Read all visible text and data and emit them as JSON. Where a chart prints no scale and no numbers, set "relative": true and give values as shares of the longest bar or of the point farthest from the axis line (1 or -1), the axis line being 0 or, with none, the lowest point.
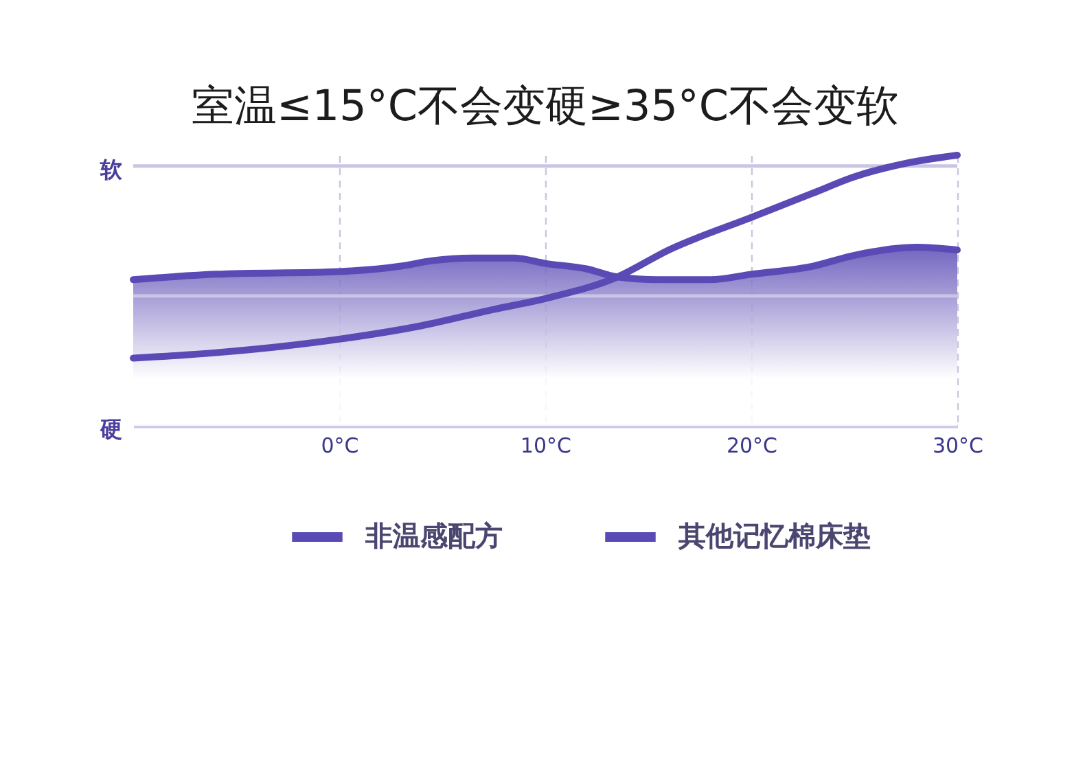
{
  "chart_data": {
    "type": "line",
    "title": "室温≤15°C不会变硬≥35°C不会变软",
    "relative": true,
    "xlim": [
      -10,
      30
    ],
    "xticks": [
      {
        "value": 0,
        "label": "0°C"
      },
      {
        "value": 10,
        "label": "10°C"
      },
      {
        "value": 20,
        "label": "20°C"
      },
      {
        "value": 30,
        "label": "30°C"
      }
    ],
    "series": [
      {
        "name": "非温感配方",
        "type": "area",
        "color": "#5a4ab5",
        "x": [
          -10,
          -6,
          0,
          3,
          4.5,
          6.5,
          8.5,
          10,
          12,
          13.5,
          15.5,
          18,
          20,
          23,
          25,
          28,
          30
        ],
        "values": [
          0.54,
          0.56,
          0.57,
          0.59,
          0.61,
          0.62,
          0.62,
          0.6,
          0.58,
          0.55,
          0.54,
          0.54,
          0.56,
          0.59,
          0.63,
          0.66,
          0.65
        ]
      },
      {
        "name": "其他记忆棉床垫",
        "color": "#5a4ab5",
        "x": [
          -10,
          -6,
          0,
          4,
          7.5,
          10,
          13.5,
          16,
          20,
          23,
          25,
          27.5,
          30
        ],
        "values": [
          0.25,
          0.27,
          0.32,
          0.37,
          0.43,
          0.47,
          0.55,
          0.65,
          0.77,
          0.86,
          0.92,
          0.97,
          1.0
        ]
      }
    ],
    "ref_lines": [
      {
        "axis": "y",
        "value": 0.96,
        "label": "软",
        "color": "#c9c5e4"
      },
      {
        "axis": "y",
        "value": 0.48,
        "color": "#c9c5e4"
      }
    ],
    "annotations": [
      "硬"
    ],
    "grid": "x",
    "legend": "bottom"
  }
}
